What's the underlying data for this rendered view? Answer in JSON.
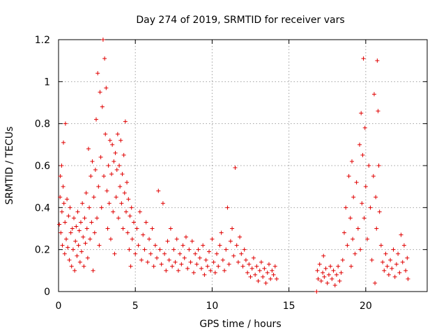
{
  "chart_data": {
    "type": "scatter",
    "title": "Day 274 of 2019, SRMTID for receiver vars",
    "xlabel": "GPS time / hours",
    "ylabel": "SRMTID / TECUs",
    "xlim": [
      0,
      24
    ],
    "ylim": [
      0,
      1.2
    ],
    "xticks": [
      0,
      5,
      10,
      15,
      20
    ],
    "xtick_labels": [
      "0",
      "5",
      "10",
      "15",
      "20"
    ],
    "yticks": [
      0,
      0.2,
      0.4,
      0.6,
      0.8,
      1,
      1.2
    ],
    "ytick_labels": [
      "0",
      "0.2",
      "0.4",
      "0.6",
      "0.8",
      "1",
      "1.2"
    ],
    "grid": true,
    "marker": "+",
    "color": "#e00000",
    "series": [
      {
        "name": "SRMTID",
        "points": [
          [
            0.05,
            0.32
          ],
          [
            0.1,
            0.45
          ],
          [
            0.12,
            0.55
          ],
          [
            0.15,
            0.28
          ],
          [
            0.2,
            0.6
          ],
          [
            0.22,
            0.38
          ],
          [
            0.25,
            0.22
          ],
          [
            0.3,
            0.5
          ],
          [
            0.32,
            0.71
          ],
          [
            0.35,
            0.42
          ],
          [
            0.4,
            0.18
          ],
          [
            0.42,
            0.33
          ],
          [
            0.45,
            0.8
          ],
          [
            0.5,
            0.25
          ],
          [
            0.55,
            0.44
          ],
          [
            0.6,
            0.21
          ],
          [
            0.65,
            0.36
          ],
          [
            0.7,
            0.15
          ],
          [
            0.75,
            0.4
          ],
          [
            0.8,
            0.28
          ],
          [
            0.85,
            0.12
          ],
          [
            0.9,
            0.3
          ],
          [
            0.95,
            0.2
          ],
          [
            1.0,
            0.35
          ],
          [
            1.05,
            0.1
          ],
          [
            1.1,
            0.24
          ],
          [
            1.15,
            0.31
          ],
          [
            1.2,
            0.17
          ],
          [
            1.25,
            0.38
          ],
          [
            1.3,
            0.22
          ],
          [
            1.35,
            0.29
          ],
          [
            1.4,
            0.14
          ],
          [
            1.45,
            0.33
          ],
          [
            1.5,
            0.19
          ],
          [
            1.55,
            0.42
          ],
          [
            1.6,
            0.26
          ],
          [
            1.65,
            0.12
          ],
          [
            1.7,
            0.35
          ],
          [
            1.75,
            0.23
          ],
          [
            1.8,
            0.47
          ],
          [
            1.85,
            0.3
          ],
          [
            1.9,
            0.16
          ],
          [
            1.95,
            0.68
          ],
          [
            2.0,
            0.4
          ],
          [
            2.05,
            0.25
          ],
          [
            2.1,
            0.55
          ],
          [
            2.15,
            0.33
          ],
          [
            2.2,
            0.62
          ],
          [
            2.25,
            0.1
          ],
          [
            2.3,
            0.45
          ],
          [
            2.35,
            0.28
          ],
          [
            2.4,
            0.58
          ],
          [
            2.45,
            0.82
          ],
          [
            2.5,
            0.35
          ],
          [
            2.55,
            1.04
          ],
          [
            2.6,
            0.5
          ],
          [
            2.65,
            0.22
          ],
          [
            2.7,
            0.95
          ],
          [
            2.75,
            0.64
          ],
          [
            2.8,
            0.4
          ],
          [
            2.85,
            0.88
          ],
          [
            2.9,
            1.2
          ],
          [
            2.95,
            0.55
          ],
          [
            3.0,
            1.11
          ],
          [
            3.05,
            0.75
          ],
          [
            3.1,
            0.97
          ],
          [
            3.15,
            0.48
          ],
          [
            3.2,
            0.3
          ],
          [
            3.25,
            0.6
          ],
          [
            3.3,
            0.42
          ],
          [
            3.35,
            0.72
          ],
          [
            3.4,
            0.25
          ],
          [
            3.45,
            0.56
          ],
          [
            3.5,
            0.7
          ],
          [
            3.55,
            0.38
          ],
          [
            3.6,
            0.62
          ],
          [
            3.65,
            0.18
          ],
          [
            3.7,
            0.66
          ],
          [
            3.75,
            0.45
          ],
          [
            3.8,
            0.58
          ],
          [
            3.85,
            0.75
          ],
          [
            3.9,
            0.35
          ],
          [
            3.95,
            0.6
          ],
          [
            4.0,
            0.5
          ],
          [
            4.05,
            0.72
          ],
          [
            4.1,
            0.42
          ],
          [
            4.15,
            0.56
          ],
          [
            4.2,
            0.3
          ],
          [
            4.25,
            0.65
          ],
          [
            4.3,
            0.47
          ],
          [
            4.35,
            0.81
          ],
          [
            4.4,
            0.38
          ],
          [
            4.45,
            0.52
          ],
          [
            4.5,
            0.28
          ],
          [
            4.55,
            0.44
          ],
          [
            4.6,
            0.2
          ],
          [
            4.65,
            0.36
          ],
          [
            4.7,
            0.12
          ],
          [
            4.75,
            0.4
          ],
          [
            4.8,
            0.25
          ],
          [
            4.9,
            0.33
          ],
          [
            5.0,
            0.18
          ],
          [
            5.1,
            0.3
          ],
          [
            5.2,
            0.22
          ],
          [
            5.3,
            0.38
          ],
          [
            5.4,
            0.15
          ],
          [
            5.5,
            0.27
          ],
          [
            5.6,
            0.2
          ],
          [
            5.7,
            0.33
          ],
          [
            5.8,
            0.14
          ],
          [
            5.9,
            0.25
          ],
          [
            6.0,
            0.18
          ],
          [
            6.1,
            0.3
          ],
          [
            6.2,
            0.12
          ],
          [
            6.3,
            0.22
          ],
          [
            6.4,
            0.16
          ],
          [
            6.5,
            0.48
          ],
          [
            6.6,
            0.2
          ],
          [
            6.7,
            0.13
          ],
          [
            6.8,
            0.42
          ],
          [
            6.9,
            0.18
          ],
          [
            7.0,
            0.1
          ],
          [
            7.1,
            0.24
          ],
          [
            7.2,
            0.15
          ],
          [
            7.3,
            0.3
          ],
          [
            7.4,
            0.12
          ],
          [
            7.5,
            0.2
          ],
          [
            7.6,
            0.14
          ],
          [
            7.7,
            0.25
          ],
          [
            7.8,
            0.1
          ],
          [
            7.9,
            0.18
          ],
          [
            8.0,
            0.13
          ],
          [
            8.1,
            0.22
          ],
          [
            8.2,
            0.16
          ],
          [
            8.3,
            0.26
          ],
          [
            8.4,
            0.11
          ],
          [
            8.5,
            0.2
          ],
          [
            8.6,
            0.14
          ],
          [
            8.7,
            0.24
          ],
          [
            8.8,
            0.09
          ],
          [
            8.9,
            0.18
          ],
          [
            9.0,
            0.13
          ],
          [
            9.1,
            0.2
          ],
          [
            9.2,
            0.16
          ],
          [
            9.3,
            0.11
          ],
          [
            9.4,
            0.22
          ],
          [
            9.5,
            0.08
          ],
          [
            9.6,
            0.15
          ],
          [
            9.7,
            0.12
          ],
          [
            9.8,
            0.19
          ],
          [
            9.9,
            0.1
          ],
          [
            10.0,
            0.25
          ],
          [
            10.1,
            0.14
          ],
          [
            10.2,
            0.09
          ],
          [
            10.3,
            0.18
          ],
          [
            10.4,
            0.12
          ],
          [
            10.5,
            0.22
          ],
          [
            10.6,
            0.28
          ],
          [
            10.7,
            0.15
          ],
          [
            10.8,
            0.1
          ],
          [
            10.9,
            0.2
          ],
          [
            11.0,
            0.4
          ],
          [
            11.1,
            0.13
          ],
          [
            11.2,
            0.24
          ],
          [
            11.3,
            0.3
          ],
          [
            11.4,
            0.17
          ],
          [
            11.5,
            0.59
          ],
          [
            11.6,
            0.22
          ],
          [
            11.7,
            0.14
          ],
          [
            11.8,
            0.26
          ],
          [
            11.9,
            0.18
          ],
          [
            12.0,
            0.12
          ],
          [
            12.1,
            0.2
          ],
          [
            12.2,
            0.15
          ],
          [
            12.3,
            0.09
          ],
          [
            12.4,
            0.13
          ],
          [
            12.5,
            0.07
          ],
          [
            12.6,
            0.11
          ],
          [
            12.7,
            0.16
          ],
          [
            12.8,
            0.08
          ],
          [
            12.9,
            0.12
          ],
          [
            13.0,
            0.05
          ],
          [
            13.1,
            0.1
          ],
          [
            13.2,
            0.14
          ],
          [
            13.3,
            0.07
          ],
          [
            13.4,
            0.11
          ],
          [
            13.5,
            0.04
          ],
          [
            13.6,
            0.09
          ],
          [
            13.7,
            0.13
          ],
          [
            13.8,
            0.06
          ],
          [
            13.9,
            0.1
          ],
          [
            14.0,
            0.08
          ],
          [
            14.1,
            0.12
          ],
          [
            14.2,
            0.06
          ],
          [
            16.8,
            0.0
          ],
          [
            16.85,
            0.1
          ],
          [
            16.9,
            0.06
          ],
          [
            17.0,
            0.13
          ],
          [
            17.1,
            0.05
          ],
          [
            17.2,
            0.09
          ],
          [
            17.25,
            0.17
          ],
          [
            17.3,
            0.07
          ],
          [
            17.4,
            0.11
          ],
          [
            17.5,
            0.04
          ],
          [
            17.6,
            0.08
          ],
          [
            17.7,
            0.12
          ],
          [
            17.8,
            0.06
          ],
          [
            17.9,
            0.1
          ],
          [
            18.0,
            0.03
          ],
          [
            18.1,
            0.08
          ],
          [
            18.2,
            0.12
          ],
          [
            18.3,
            0.05
          ],
          [
            18.4,
            0.09
          ],
          [
            18.5,
            0.15
          ],
          [
            18.6,
            0.28
          ],
          [
            18.7,
            0.4
          ],
          [
            18.8,
            0.22
          ],
          [
            18.9,
            0.55
          ],
          [
            19.0,
            0.35
          ],
          [
            19.05,
            0.12
          ],
          [
            19.1,
            0.62
          ],
          [
            19.15,
            0.25
          ],
          [
            19.2,
            0.45
          ],
          [
            19.3,
            0.18
          ],
          [
            19.4,
            0.52
          ],
          [
            19.5,
            0.3
          ],
          [
            19.6,
            0.7
          ],
          [
            19.65,
            0.2
          ],
          [
            19.7,
            0.85
          ],
          [
            19.75,
            0.42
          ],
          [
            19.8,
            0.65
          ],
          [
            19.85,
            1.11
          ],
          [
            19.9,
            0.35
          ],
          [
            19.95,
            0.78
          ],
          [
            20.0,
            0.5
          ],
          [
            20.1,
            0.25
          ],
          [
            20.2,
            0.6
          ],
          [
            20.3,
            0.4
          ],
          [
            20.4,
            0.15
          ],
          [
            20.5,
            0.55
          ],
          [
            20.55,
            0.94
          ],
          [
            20.6,
            0.04
          ],
          [
            20.65,
            0.45
          ],
          [
            20.7,
            0.3
          ],
          [
            20.75,
            1.1
          ],
          [
            20.8,
            0.86
          ],
          [
            20.85,
            0.6
          ],
          [
            20.9,
            0.38
          ],
          [
            21.0,
            0.22
          ],
          [
            21.1,
            0.14
          ],
          [
            21.2,
            0.1
          ],
          [
            21.3,
            0.18
          ],
          [
            21.4,
            0.12
          ],
          [
            21.5,
            0.08
          ],
          [
            21.6,
            0.15
          ],
          [
            21.7,
            0.11
          ],
          [
            21.8,
            0.2
          ],
          [
            21.9,
            0.07
          ],
          [
            22.0,
            0.13
          ],
          [
            22.1,
            0.18
          ],
          [
            22.2,
            0.09
          ],
          [
            22.3,
            0.27
          ],
          [
            22.4,
            0.14
          ],
          [
            22.5,
            0.22
          ],
          [
            22.6,
            0.1
          ],
          [
            22.7,
            0.16
          ],
          [
            22.75,
            0.06
          ]
        ]
      }
    ]
  }
}
